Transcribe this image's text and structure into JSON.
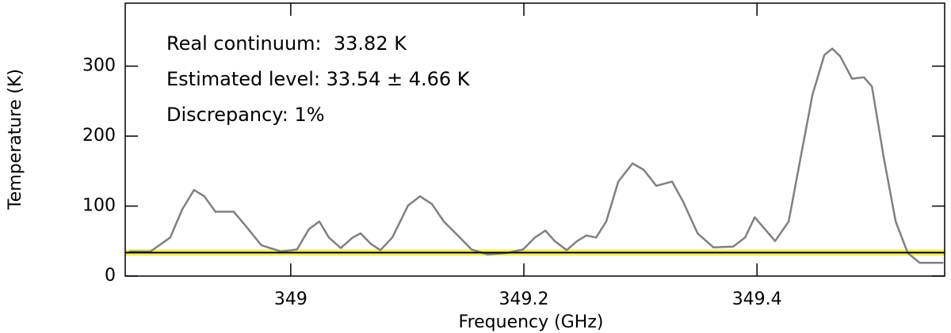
{
  "chart_data": {
    "type": "line",
    "x_label": "Frequency (GHz)",
    "y_label": "Temperature (K)",
    "annotations": [
      "Real continuum:  33.82 K",
      "Estimated level: 33.54 ± 4.66 K",
      "Discrepancy: 1%"
    ],
    "x": [
      348.8612,
      348.8796,
      348.8966,
      348.9068,
      348.917,
      348.9259,
      348.9354,
      348.951,
      348.9612,
      348.9748,
      348.9918,
      349.0054,
      349.0156,
      349.0245,
      349.0327,
      349.0429,
      349.0531,
      349.0599,
      349.0687,
      349.0769,
      349.0871,
      349.1007,
      349.1109,
      349.1211,
      349.1313,
      349.1415,
      349.1551,
      349.1687,
      349.1857,
      349.1993,
      349.2095,
      349.2184,
      349.2265,
      349.2367,
      349.2456,
      349.2537,
      349.2619,
      349.2707,
      349.281,
      349.2932,
      349.3027,
      349.3136,
      349.3272,
      349.3367,
      349.349,
      349.3626,
      349.3796,
      349.3898,
      349.398,
      349.4068,
      349.4156,
      349.4272,
      349.4374,
      349.4476,
      349.4578,
      349.4646,
      349.4714,
      349.4816,
      349.4918,
      349.4986,
      349.5088,
      349.519,
      349.5293,
      349.5395,
      349.5599
    ],
    "series": [
      {
        "color": "#808080",
        "values": [
          35,
          35,
          55,
          95,
          123,
          114,
          92,
          92,
          72,
          44,
          35,
          38,
          67,
          78,
          55,
          40,
          55,
          61,
          46,
          37,
          55,
          101,
          114,
          103,
          78,
          61,
          38,
          31,
          33,
          38,
          55,
          65,
          50,
          37,
          50,
          58,
          55,
          78,
          135,
          161,
          152,
          129,
          135,
          106,
          61,
          41,
          42,
          55,
          84,
          67,
          50,
          78,
          169,
          259,
          316,
          325,
          314,
          282,
          284,
          271,
          169,
          78,
          33,
          19,
          19
        ]
      }
    ],
    "continuum": {
      "level": 33.54,
      "error": 4.66,
      "color": "#000000",
      "band_color": "#f3ee6a"
    },
    "xlim": [
      348.858,
      349.561
    ],
    "ylim": [
      0,
      390
    ],
    "xticks": [
      349,
      349.2,
      349.4
    ],
    "yticks": [
      0,
      100,
      200,
      300
    ]
  }
}
